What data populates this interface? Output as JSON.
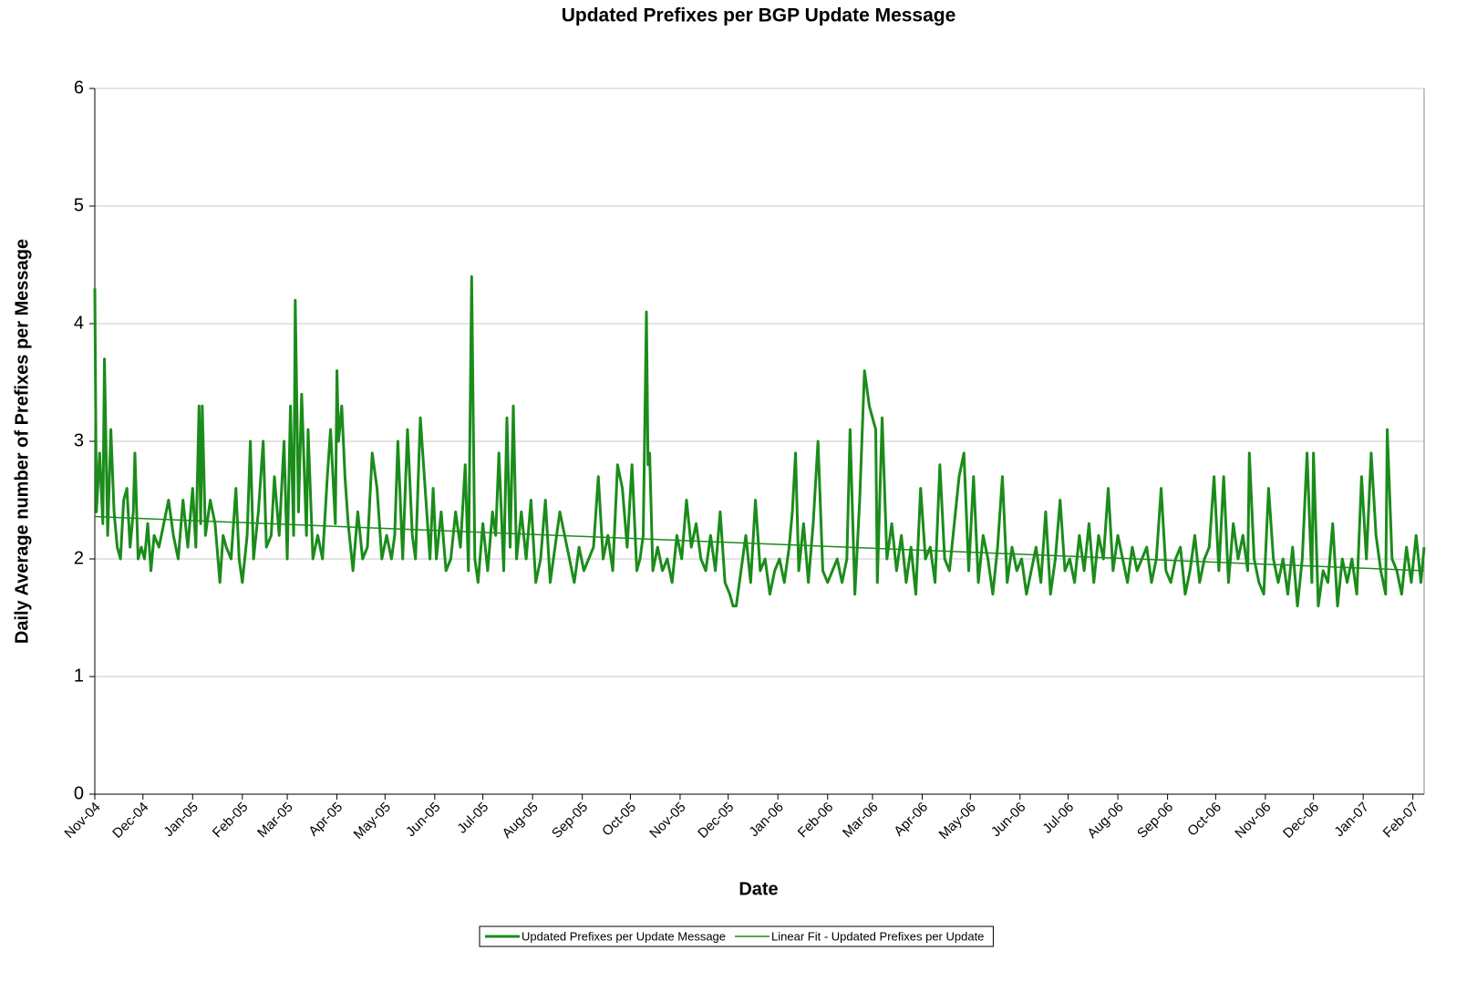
{
  "chart_data": {
    "type": "line",
    "title": "Updated Prefixes per BGP Update Message",
    "x_label": "Date",
    "y_label": "Daily Average number of Prefixes per Message",
    "xlim": [
      0,
      829
    ],
    "xticks": [
      {
        "value": 0,
        "label": "Nov-04"
      },
      {
        "value": 30,
        "label": "Dec-04"
      },
      {
        "value": 61,
        "label": "Jan-05"
      },
      {
        "value": 92,
        "label": "Feb-05"
      },
      {
        "value": 120,
        "label": "Mar-05"
      },
      {
        "value": 151,
        "label": "Apr-05"
      },
      {
        "value": 181,
        "label": "May-05"
      },
      {
        "value": 212,
        "label": "Jun-05"
      },
      {
        "value": 242,
        "label": "Jul-05"
      },
      {
        "value": 273,
        "label": "Aug-05"
      },
      {
        "value": 304,
        "label": "Sep-05"
      },
      {
        "value": 334,
        "label": "Oct-05"
      },
      {
        "value": 365,
        "label": "Nov-05"
      },
      {
        "value": 395,
        "label": "Dec-05"
      },
      {
        "value": 426,
        "label": "Jan-06"
      },
      {
        "value": 457,
        "label": "Feb-06"
      },
      {
        "value": 485,
        "label": "Mar-06"
      },
      {
        "value": 516,
        "label": "Apr-06"
      },
      {
        "value": 546,
        "label": "May-06"
      },
      {
        "value": 577,
        "label": "Jun-06"
      },
      {
        "value": 607,
        "label": "Jul-06"
      },
      {
        "value": 638,
        "label": "Aug-06"
      },
      {
        "value": 669,
        "label": "Sep-06"
      },
      {
        "value": 699,
        "label": "Oct-06"
      },
      {
        "value": 730,
        "label": "Nov-06"
      },
      {
        "value": 760,
        "label": "Dec-06"
      },
      {
        "value": 791,
        "label": "Jan-07"
      },
      {
        "value": 822,
        "label": "Feb-07"
      }
    ],
    "ylim": [
      0,
      6
    ],
    "yticks": [
      0,
      1,
      2,
      3,
      4,
      5,
      6
    ],
    "grid": true,
    "legend": "bottom",
    "series": [
      {
        "name": "Updated Prefixes per Update Message",
        "color": "#1b8c1b",
        "width": 3,
        "x": [
          0,
          1,
          3,
          5,
          6,
          8,
          10,
          12,
          14,
          16,
          18,
          20,
          22,
          24,
          25,
          27,
          29,
          31,
          33,
          35,
          37,
          40,
          43,
          46,
          49,
          52,
          55,
          58,
          61,
          63,
          65,
          66,
          67,
          69,
          72,
          75,
          78,
          80,
          82,
          85,
          88,
          90,
          92,
          95,
          97,
          99,
          102,
          105,
          107,
          110,
          112,
          115,
          118,
          120,
          122,
          124,
          125,
          127,
          129,
          132,
          133,
          136,
          139,
          142,
          145,
          147,
          150,
          151,
          152,
          154,
          156,
          158,
          161,
          164,
          167,
          170,
          173,
          176,
          179,
          182,
          185,
          187,
          189,
          192,
          195,
          198,
          200,
          203,
          206,
          209,
          211,
          213,
          216,
          219,
          222,
          225,
          228,
          231,
          233,
          235,
          237,
          239,
          242,
          245,
          248,
          250,
          252,
          255,
          257,
          259,
          261,
          263,
          266,
          269,
          272,
          275,
          278,
          281,
          284,
          287,
          290,
          293,
          296,
          299,
          302,
          305,
          308,
          311,
          314,
          317,
          320,
          323,
          326,
          329,
          332,
          335,
          338,
          340,
          342,
          344,
          345,
          346,
          348,
          351,
          354,
          357,
          360,
          363,
          366,
          369,
          372,
          375,
          378,
          381,
          384,
          387,
          390,
          393,
          396,
          398,
          400,
          403,
          406,
          409,
          412,
          415,
          418,
          421,
          424,
          427,
          430,
          433,
          435,
          437,
          439,
          442,
          445,
          448,
          451,
          454,
          457,
          460,
          463,
          466,
          469,
          471,
          474,
          477,
          480,
          483,
          487,
          488,
          491,
          494,
          497,
          500,
          503,
          506,
          509,
          512,
          515,
          518,
          521,
          524,
          527,
          530,
          533,
          536,
          539,
          542,
          545,
          548,
          551,
          554,
          557,
          560,
          563,
          566,
          569,
          572,
          575,
          578,
          581,
          584,
          587,
          590,
          593,
          596,
          599,
          602,
          605,
          608,
          611,
          614,
          617,
          620,
          623,
          626,
          629,
          632,
          635,
          638,
          641,
          644,
          647,
          650,
          653,
          656,
          659,
          662,
          665,
          668,
          671,
          674,
          677,
          680,
          683,
          686,
          689,
          692,
          695,
          698,
          701,
          704,
          707,
          710,
          713,
          716,
          719,
          720,
          723,
          726,
          729,
          732,
          735,
          738,
          741,
          744,
          747,
          750,
          753,
          756,
          759,
          760,
          763,
          766,
          769,
          772,
          775,
          778,
          781,
          784,
          787,
          790,
          793,
          796,
          799,
          802,
          805,
          806,
          809,
          812,
          815,
          818,
          821,
          824,
          827,
          829
        ],
        "values": [
          4.3,
          2.4,
          2.9,
          2.3,
          3.7,
          2.2,
          3.1,
          2.4,
          2.1,
          2.0,
          2.5,
          2.6,
          2.1,
          2.4,
          2.9,
          2.0,
          2.1,
          2.0,
          2.3,
          1.9,
          2.2,
          2.1,
          2.3,
          2.5,
          2.2,
          2.0,
          2.5,
          2.1,
          2.6,
          2.1,
          3.3,
          2.3,
          3.3,
          2.2,
          2.5,
          2.3,
          1.8,
          2.2,
          2.1,
          2.0,
          2.6,
          2.0,
          1.8,
          2.2,
          3.0,
          2.0,
          2.4,
          3.0,
          2.1,
          2.2,
          2.7,
          2.2,
          3.0,
          2.0,
          3.3,
          2.2,
          4.2,
          2.4,
          3.4,
          2.2,
          3.1,
          2.0,
          2.2,
          2.0,
          2.7,
          3.1,
          2.3,
          3.6,
          3.0,
          3.3,
          2.7,
          2.3,
          1.9,
          2.4,
          2.0,
          2.1,
          2.9,
          2.6,
          2.0,
          2.2,
          2.0,
          2.2,
          3.0,
          2.0,
          3.1,
          2.2,
          2.0,
          3.2,
          2.6,
          2.0,
          2.6,
          2.0,
          2.4,
          1.9,
          2.0,
          2.4,
          2.1,
          2.8,
          1.9,
          4.4,
          2.0,
          1.8,
          2.3,
          1.9,
          2.4,
          2.2,
          2.9,
          1.9,
          3.2,
          2.1,
          3.3,
          2.0,
          2.4,
          2.0,
          2.5,
          1.8,
          2.0,
          2.5,
          1.8,
          2.1,
          2.4,
          2.2,
          2.0,
          1.8,
          2.1,
          1.9,
          2.0,
          2.1,
          2.7,
          2.0,
          2.2,
          1.9,
          2.8,
          2.6,
          2.1,
          2.8,
          1.9,
          2.0,
          2.2,
          4.1,
          2.8,
          2.9,
          1.9,
          2.1,
          1.9,
          2.0,
          1.8,
          2.2,
          2.0,
          2.5,
          2.1,
          2.3,
          2.0,
          1.9,
          2.2,
          1.9,
          2.4,
          1.8,
          1.7,
          1.6,
          1.6,
          1.9,
          2.2,
          1.8,
          2.5,
          1.9,
          2.0,
          1.7,
          1.9,
          2.0,
          1.8,
          2.1,
          2.4,
          2.9,
          1.9,
          2.3,
          1.8,
          2.3,
          3.0,
          1.9,
          1.8,
          1.9,
          2.0,
          1.8,
          2.0,
          3.1,
          1.7,
          2.5,
          3.6,
          3.3,
          3.1,
          1.8,
          3.2,
          2.0,
          2.3,
          1.9,
          2.2,
          1.8,
          2.1,
          1.7,
          2.6,
          2.0,
          2.1,
          1.8,
          2.8,
          2.0,
          1.9,
          2.3,
          2.7,
          2.9,
          1.9,
          2.7,
          1.8,
          2.2,
          2.0,
          1.7,
          2.1,
          2.7,
          1.8,
          2.1,
          1.9,
          2.0,
          1.7,
          1.9,
          2.1,
          1.8,
          2.4,
          1.7,
          2.0,
          2.5,
          1.9,
          2.0,
          1.8,
          2.2,
          1.9,
          2.3,
          1.8,
          2.2,
          2.0,
          2.6,
          1.9,
          2.2,
          2.0,
          1.8,
          2.1,
          1.9,
          2.0,
          2.1,
          1.8,
          2.0,
          2.6,
          1.9,
          1.8,
          2.0,
          2.1,
          1.7,
          1.9,
          2.2,
          1.8,
          2.0,
          2.1,
          2.7,
          1.9,
          2.7,
          1.8,
          2.3,
          2.0,
          2.2,
          1.9,
          2.9,
          2.0,
          1.8,
          1.7,
          2.6,
          2.0,
          1.8,
          2.0,
          1.7,
          2.1,
          1.6,
          2.0,
          2.9,
          1.8,
          2.9,
          1.6,
          1.9,
          1.8,
          2.3,
          1.6,
          2.0,
          1.8,
          2.0,
          1.7,
          2.7,
          2.0,
          2.9,
          2.2,
          1.9,
          1.7,
          3.1,
          2.0,
          1.9,
          1.7,
          2.1,
          1.8,
          2.2,
          1.8,
          2.1
        ]
      },
      {
        "name": "Linear Fit - Updated Prefixes per Update",
        "color": "#1b8c1b",
        "width": 1.5,
        "x": [
          0,
          829
        ],
        "values": [
          2.36,
          1.9
        ]
      }
    ]
  }
}
